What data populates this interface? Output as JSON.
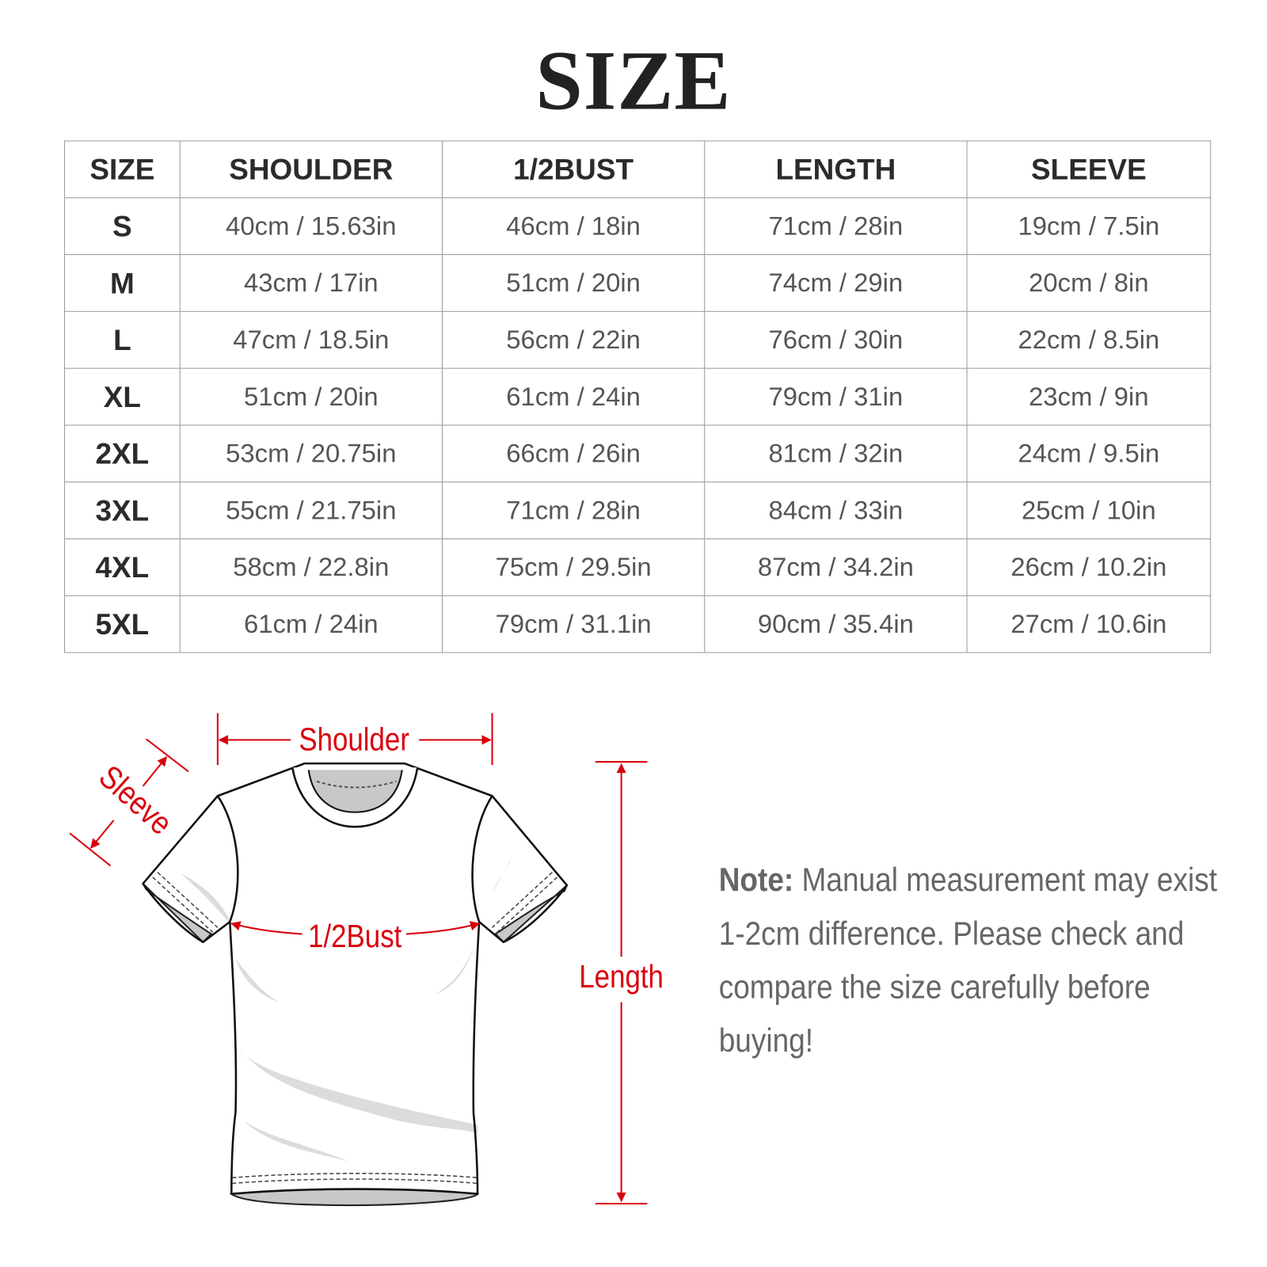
{
  "title": "SIZE",
  "table": {
    "headers": [
      "SIZE",
      "SHOULDER",
      "1/2BUST",
      "LENGTH",
      "SLEEVE"
    ],
    "rows": [
      [
        "S",
        "40cm / 15.63in",
        "46cm / 18in",
        "71cm / 28in",
        "19cm / 7.5in"
      ],
      [
        "M",
        "43cm / 17in",
        "51cm / 20in",
        "74cm / 29in",
        "20cm / 8in"
      ],
      [
        "L",
        "47cm / 18.5in",
        "56cm / 22in",
        "76cm / 30in",
        "22cm / 8.5in"
      ],
      [
        "XL",
        "51cm / 20in",
        "61cm / 24in",
        "79cm / 31in",
        "23cm / 9in"
      ],
      [
        "2XL",
        "53cm / 20.75in",
        "66cm / 26in",
        "81cm / 32in",
        "24cm / 9.5in"
      ],
      [
        "3XL",
        "55cm / 21.75in",
        "71cm / 28in",
        "84cm / 33in",
        "25cm / 10in"
      ],
      [
        "4XL",
        "58cm / 22.8in",
        "75cm / 29.5in",
        "87cm / 34.2in",
        "26cm / 10.2in"
      ],
      [
        "5XL",
        "61cm / 24in",
        "79cm / 31.1in",
        "90cm / 35.4in",
        "27cm / 10.6in"
      ]
    ]
  },
  "diagram": {
    "shoulder_label": "Shoulder",
    "sleeve_label": "Sleeve",
    "bust_label": "1/2Bust",
    "length_label": "Length",
    "annotation_color": "#d9000d"
  },
  "note": {
    "label": "Note:",
    "text": "Manual measurement may exist 1-2cm difference. Please check and compare the size carefully before buying!"
  }
}
